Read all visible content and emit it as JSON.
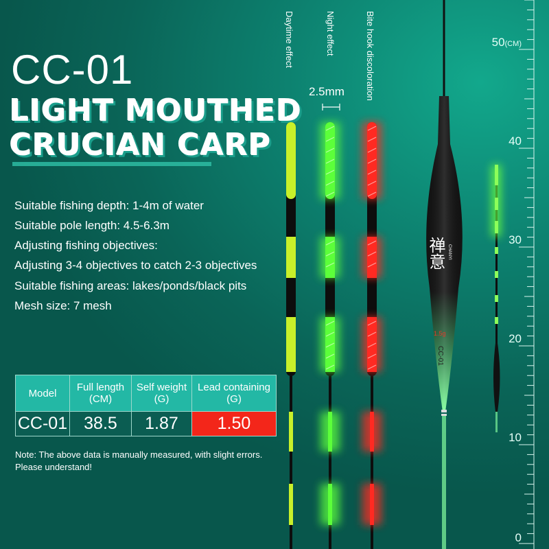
{
  "title": {
    "model": "CC-01",
    "headline_line1": "LIGHT MOUTHED",
    "headline_line2": "CRUCIAN CARP"
  },
  "specs": [
    "Suitable fishing depth: 1-4m of water",
    "Suitable pole length: 4.5-6.3m",
    "Adjusting fishing objectives:",
    "Adjusting 3-4 objectives to catch 2-3 objectives",
    "Suitable fishing areas: lakes/ponds/black pits",
    "Mesh size: 7 mesh"
  ],
  "table": {
    "headers": [
      [
        "Model",
        ""
      ],
      [
        "Full length",
        "(CM)"
      ],
      [
        "Self weight",
        "(G)"
      ],
      [
        "Lead containing",
        "(G)"
      ]
    ],
    "row": [
      "CC-01",
      "38.5",
      "1.87",
      "1.50"
    ],
    "highlight_color": "#f3261a"
  },
  "note": "Note: The above data is manually measured, with slight errors. Please understand!",
  "effects": {
    "daytime": "Daytime effect",
    "night": "Night effect",
    "bite": "Bite hook discoloration",
    "diameter": "2.5mm"
  },
  "colors": {
    "daytime": "#c8f02a",
    "night": "#5cff3a",
    "bite": "#ff2a22"
  },
  "float_body": {
    "brand_cn": "禅意",
    "brand_en": "CHANYI",
    "weight_mark": "1.5g",
    "model_mark": "CC-01"
  },
  "ruler": {
    "unit": "(CM)",
    "labels": [
      "50",
      "40",
      "30",
      "20",
      "10",
      "0"
    ]
  }
}
